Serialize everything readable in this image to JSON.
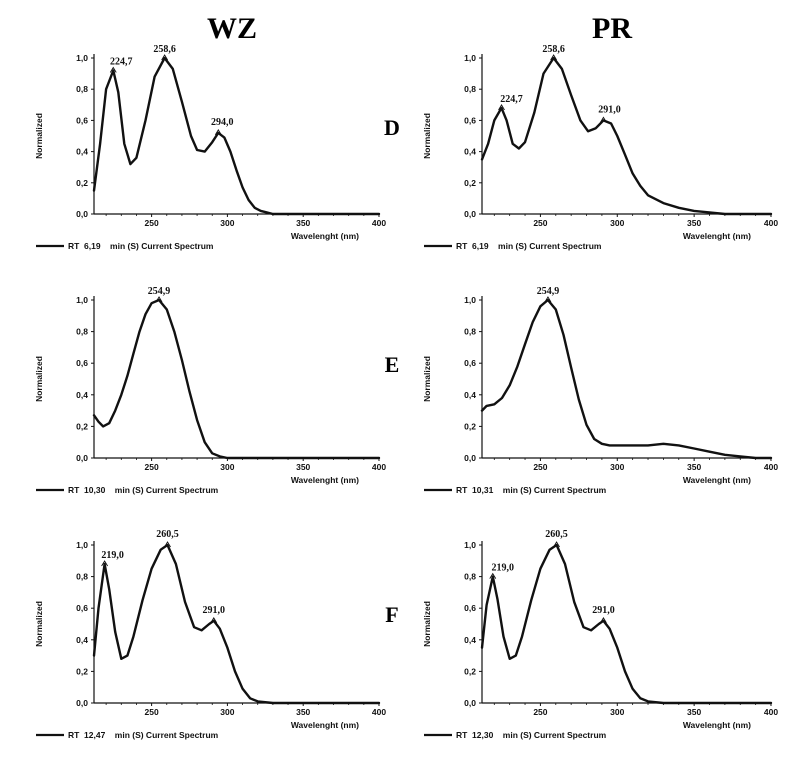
{
  "figure": {
    "column_headers": [
      "WZ",
      "PR"
    ],
    "row_labels": [
      "D",
      "E",
      "F"
    ]
  },
  "chart_data": [
    {
      "id": "D-WZ",
      "type": "line",
      "xlabel": "Wavelenght (nm)",
      "ylabel": "Normalized",
      "xlim": [
        212,
        400
      ],
      "ylim": [
        0,
        1.0
      ],
      "xticks": [
        250,
        300,
        350,
        400
      ],
      "yticks": [
        "0,0",
        "0,2",
        "0,4",
        "0,6",
        "0,8",
        "1,0"
      ],
      "legend": "RT  6,19    min (S) Current Spectrum",
      "peaks": [
        {
          "x": 224.7,
          "y": 0.92,
          "label": "224,7"
        },
        {
          "x": 258.6,
          "y": 1.0,
          "label": "258,6"
        },
        {
          "x": 294.0,
          "y": 0.52,
          "label": "294,0"
        }
      ],
      "x": [
        212,
        216,
        220,
        224.7,
        228,
        232,
        236,
        240,
        246,
        252,
        258.6,
        264,
        270,
        276,
        280,
        285,
        290,
        294,
        298,
        302,
        306,
        310,
        314,
        318,
        322,
        326,
        330,
        340,
        350,
        360,
        380,
        400
      ],
      "y": [
        0.15,
        0.45,
        0.8,
        0.92,
        0.78,
        0.45,
        0.32,
        0.36,
        0.6,
        0.88,
        1.0,
        0.93,
        0.72,
        0.5,
        0.41,
        0.4,
        0.46,
        0.52,
        0.49,
        0.4,
        0.28,
        0.17,
        0.09,
        0.04,
        0.02,
        0.01,
        0.0,
        0.0,
        0.0,
        0.0,
        0.0,
        0.0
      ]
    },
    {
      "id": "D-PR",
      "type": "line",
      "xlabel": "Wavelenght (nm)",
      "ylabel": "Normalized",
      "xlim": [
        212,
        400
      ],
      "ylim": [
        0,
        1.0
      ],
      "xticks": [
        250,
        300,
        350,
        400
      ],
      "yticks": [
        "0,0",
        "0,2",
        "0,4",
        "0,6",
        "0,8",
        "1,0"
      ],
      "legend": "RT  6,19    min (S) Current Spectrum",
      "peaks": [
        {
          "x": 224.7,
          "y": 0.68,
          "label": "224,7"
        },
        {
          "x": 258.6,
          "y": 1.0,
          "label": "258,6"
        },
        {
          "x": 291.0,
          "y": 0.6,
          "label": "291,0"
        }
      ],
      "x": [
        212,
        216,
        220,
        224.7,
        228,
        232,
        236,
        240,
        246,
        252,
        258.6,
        264,
        270,
        276,
        281,
        286,
        291,
        296,
        300,
        305,
        310,
        315,
        320,
        330,
        340,
        350,
        360,
        370,
        380,
        400
      ],
      "y": [
        0.35,
        0.45,
        0.6,
        0.68,
        0.6,
        0.45,
        0.42,
        0.46,
        0.65,
        0.9,
        1.0,
        0.93,
        0.76,
        0.6,
        0.53,
        0.55,
        0.6,
        0.58,
        0.5,
        0.38,
        0.26,
        0.18,
        0.12,
        0.07,
        0.04,
        0.02,
        0.01,
        0.0,
        0.0,
        0.0
      ]
    },
    {
      "id": "E-WZ",
      "type": "line",
      "xlabel": "Wavelenght (nm)",
      "ylabel": "Normalized",
      "xlim": [
        212,
        400
      ],
      "ylim": [
        0,
        1.0
      ],
      "xticks": [
        250,
        300,
        350,
        400
      ],
      "yticks": [
        "0,0",
        "0,2",
        "0,4",
        "0,6",
        "0,8",
        "1,0"
      ],
      "legend": "RT  10,30    min (S) Current Spectrum",
      "peaks": [
        {
          "x": 254.9,
          "y": 1.0,
          "label": "254,9"
        }
      ],
      "x": [
        212,
        215,
        218,
        222,
        226,
        230,
        234,
        238,
        242,
        246,
        250,
        254.9,
        260,
        265,
        270,
        275,
        280,
        285,
        290,
        295,
        300,
        310,
        330,
        360,
        400
      ],
      "y": [
        0.27,
        0.23,
        0.2,
        0.22,
        0.3,
        0.4,
        0.52,
        0.66,
        0.8,
        0.91,
        0.98,
        1.0,
        0.94,
        0.8,
        0.62,
        0.42,
        0.24,
        0.1,
        0.03,
        0.01,
        0.0,
        0.0,
        0.0,
        0.0,
        0.0
      ]
    },
    {
      "id": "E-PR",
      "type": "line",
      "xlabel": "Wavelenght (nm)",
      "ylabel": "Normalized",
      "xlim": [
        212,
        400
      ],
      "ylim": [
        0,
        1.0
      ],
      "xticks": [
        250,
        300,
        350,
        400
      ],
      "yticks": [
        "0,0",
        "0,2",
        "0,4",
        "0,6",
        "0,8",
        "1,0"
      ],
      "legend": "RT  10,31    min (S) Current Spectrum",
      "peaks": [
        {
          "x": 254.9,
          "y": 1.0,
          "label": "254,9"
        }
      ],
      "x": [
        212,
        215,
        220,
        225,
        230,
        235,
        240,
        245,
        250,
        254.9,
        260,
        265,
        270,
        275,
        280,
        285,
        290,
        295,
        300,
        310,
        320,
        330,
        340,
        350,
        360,
        370,
        380,
        390,
        400
      ],
      "y": [
        0.3,
        0.33,
        0.34,
        0.38,
        0.46,
        0.58,
        0.72,
        0.86,
        0.96,
        1.0,
        0.94,
        0.78,
        0.57,
        0.37,
        0.21,
        0.12,
        0.09,
        0.08,
        0.08,
        0.08,
        0.08,
        0.09,
        0.08,
        0.06,
        0.04,
        0.02,
        0.01,
        0.0,
        0.0
      ]
    },
    {
      "id": "F-WZ",
      "type": "line",
      "xlabel": "Wavelenght (nm)",
      "ylabel": "Normalized",
      "xlim": [
        212,
        400
      ],
      "ylim": [
        0,
        1.0
      ],
      "xticks": [
        250,
        300,
        350,
        400
      ],
      "yticks": [
        "0,0",
        "0,2",
        "0,4",
        "0,6",
        "0,8",
        "1,0"
      ],
      "legend": "RT  12,47    min (S) Current Spectrum",
      "peaks": [
        {
          "x": 219.0,
          "y": 0.88,
          "label": "219,0"
        },
        {
          "x": 260.5,
          "y": 1.0,
          "label": "260,5"
        },
        {
          "x": 291.0,
          "y": 0.52,
          "label": "291,0"
        }
      ],
      "x": [
        212,
        215,
        219,
        222,
        226,
        230,
        234,
        238,
        244,
        250,
        256,
        260.5,
        266,
        272,
        278,
        283,
        288,
        291,
        295,
        300,
        305,
        310,
        315,
        320,
        330,
        340,
        360,
        400
      ],
      "y": [
        0.3,
        0.6,
        0.88,
        0.72,
        0.45,
        0.28,
        0.3,
        0.42,
        0.65,
        0.85,
        0.97,
        1.0,
        0.88,
        0.64,
        0.48,
        0.46,
        0.5,
        0.52,
        0.47,
        0.35,
        0.2,
        0.09,
        0.03,
        0.01,
        0.0,
        0.0,
        0.0,
        0.0
      ]
    },
    {
      "id": "F-PR",
      "type": "line",
      "xlabel": "Wavelenght (nm)",
      "ylabel": "Normalized",
      "xlim": [
        212,
        400
      ],
      "ylim": [
        0,
        1.0
      ],
      "xticks": [
        250,
        300,
        350,
        400
      ],
      "yticks": [
        "0,0",
        "0,2",
        "0,4",
        "0,6",
        "0,8",
        "1,0"
      ],
      "legend": "RT  12,30    min (S) Current Spectrum",
      "peaks": [
        {
          "x": 219.0,
          "y": 0.8,
          "label": "219,0"
        },
        {
          "x": 260.5,
          "y": 1.0,
          "label": "260,5"
        },
        {
          "x": 291.0,
          "y": 0.52,
          "label": "291,0"
        }
      ],
      "x": [
        212,
        215,
        219,
        222,
        226,
        230,
        234,
        238,
        244,
        250,
        256,
        260.5,
        266,
        272,
        278,
        283,
        288,
        291,
        295,
        300,
        305,
        310,
        315,
        320,
        330,
        340,
        360,
        400
      ],
      "y": [
        0.35,
        0.62,
        0.8,
        0.66,
        0.42,
        0.28,
        0.3,
        0.42,
        0.65,
        0.85,
        0.97,
        1.0,
        0.88,
        0.64,
        0.48,
        0.46,
        0.5,
        0.52,
        0.47,
        0.35,
        0.2,
        0.09,
        0.03,
        0.01,
        0.0,
        0.0,
        0.0,
        0.0
      ]
    }
  ]
}
